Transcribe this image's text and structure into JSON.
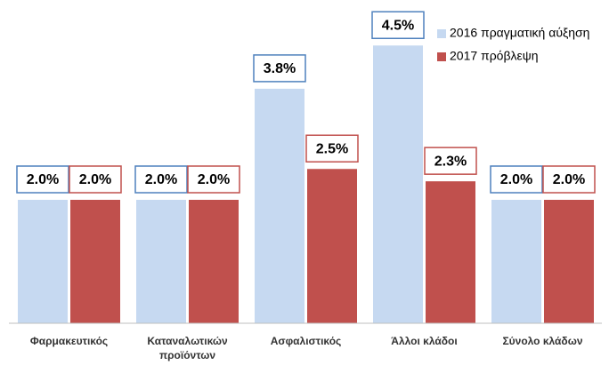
{
  "chart_data": {
    "type": "bar",
    "categories": [
      "Φαρμακευτικός",
      "Καταναλωτικών προϊόντων",
      "Ασφαλιστικός",
      "Άλλοι κλάδοι",
      "Σύνολο κλάδων"
    ],
    "series": [
      {
        "name": "2016 πραγματική αύξηση",
        "color": "#c6d9f1",
        "border": "#4f81bd",
        "values": [
          2.0,
          2.0,
          3.8,
          4.5,
          2.0
        ],
        "value_labels": [
          "2.0%",
          "2.0%",
          "3.8%",
          "4.5%",
          "2.0%"
        ]
      },
      {
        "name": "2017 πρόβλεψη",
        "color": "#c0504d",
        "border": "#c0504d",
        "values": [
          2.0,
          2.0,
          2.5,
          2.3,
          2.0
        ],
        "value_labels": [
          "2.0%",
          "2.0%",
          "2.5%",
          "2.3%",
          "2.0%"
        ]
      }
    ],
    "legend": "top-right"
  }
}
